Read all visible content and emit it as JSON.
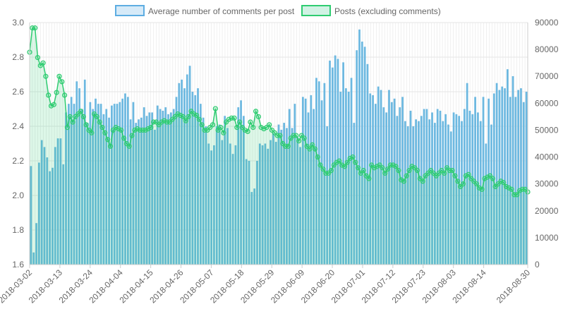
{
  "chart_data": {
    "type": "bar+line",
    "legend": {
      "placement": "top-center",
      "items": [
        {
          "label": "Average number of comments per post",
          "fill": "#d6eaf8",
          "stroke": "#5dade2"
        },
        {
          "label": "Posts (excluding comments)",
          "fill": "#d1f2e4",
          "stroke": "#2ecc71"
        }
      ]
    },
    "x_start": "2018-03-02",
    "x_end": "2018-08-30",
    "x_tick_labels": [
      "2018-03-02",
      "2018-03-13",
      "2018-03-24",
      "2018-04-04",
      "2018-04-15",
      "2018-04-26",
      "2018-05-07",
      "2018-05-18",
      "2018-05-29",
      "2018-06-09",
      "2018-06-20",
      "2018-07-01",
      "2018-07-12",
      "2018-07-23",
      "2018-08-03",
      "2018-08-14",
      "2018-08-30"
    ],
    "y_left": {
      "min": 1.6,
      "max": 3.0,
      "ticks": [
        "1.6",
        "1.8",
        "2.0",
        "2.2",
        "2.4",
        "2.6",
        "2.8",
        "3.0"
      ]
    },
    "y_right": {
      "min": 0,
      "max": 90000,
      "ticks": [
        "0",
        "10000",
        "20000",
        "30000",
        "40000",
        "50000",
        "60000",
        "70000",
        "80000",
        "90000"
      ]
    },
    "grid": true,
    "colors": {
      "bar": "#6cb8e0",
      "line": "#2ecc71",
      "line_fill": "rgba(46,204,113,0.16)",
      "grid": "#e6e6e6",
      "axis_text": "#666666"
    },
    "series": [
      {
        "name": "Average number of comments per post",
        "axis": "left",
        "type": "bar",
        "values": [
          2.17,
          1.67,
          1.84,
          2.19,
          2.32,
          2.28,
          2.22,
          2.14,
          2.16,
          2.28,
          2.33,
          2.33,
          2.18,
          2.48,
          2.53,
          2.57,
          2.53,
          2.66,
          2.62,
          2.5,
          2.67,
          2.42,
          2.54,
          2.5,
          2.56,
          2.53,
          2.53,
          2.47,
          2.5,
          2.45,
          2.52,
          2.53,
          2.53,
          2.54,
          2.56,
          2.59,
          2.57,
          2.44,
          2.54,
          2.42,
          2.44,
          2.45,
          2.51,
          2.46,
          2.48,
          2.48,
          2.38,
          2.52,
          2.5,
          2.49,
          2.51,
          2.47,
          2.48,
          2.5,
          2.57,
          2.65,
          2.67,
          2.62,
          2.7,
          2.75,
          2.6,
          2.58,
          2.62,
          2.53,
          2.45,
          2.4,
          2.3,
          2.26,
          2.29,
          2.4,
          2.41,
          2.32,
          2.46,
          2.39,
          2.3,
          2.24,
          2.29,
          2.51,
          2.55,
          2.46,
          2.21,
          2.2,
          2.02,
          2.04,
          2.2,
          2.3,
          2.29,
          2.3,
          2.27,
          2.32,
          2.36,
          2.31,
          2.41,
          2.38,
          2.42,
          2.39,
          2.5,
          2.39,
          2.53,
          2.34,
          2.28,
          2.57,
          2.56,
          2.48,
          2.58,
          2.5,
          2.68,
          2.66,
          2.55,
          2.65,
          2.4,
          2.78,
          2.74,
          2.81,
          2.79,
          2.6,
          2.77,
          2.62,
          2.6,
          2.68,
          2.42,
          2.84,
          2.96,
          2.89,
          2.86,
          2.76,
          2.59,
          2.58,
          2.53,
          2.63,
          2.61,
          2.51,
          2.48,
          2.61,
          2.54,
          2.56,
          2.46,
          2.51,
          2.57,
          2.43,
          2.4,
          2.49,
          2.4,
          2.44,
          2.43,
          2.46,
          2.5,
          2.5,
          2.44,
          2.48,
          2.42,
          2.5,
          2.49,
          2.43,
          2.47,
          2.41,
          2.37,
          2.48,
          2.47,
          2.46,
          2.43,
          2.5,
          2.65,
          2.49,
          2.47,
          2.57,
          2.48,
          2.43,
          2.57,
          2.3,
          2.56,
          2.41,
          2.59,
          2.65,
          2.61,
          2.63,
          2.62,
          2.73,
          2.57,
          2.69,
          2.57,
          2.61,
          2.62,
          2.54,
          2.6
        ]
      },
      {
        "name": "Posts (excluding comments)",
        "axis": "right",
        "type": "line",
        "values": [
          79000,
          88000,
          88000,
          77000,
          74000,
          75000,
          70000,
          63000,
          59000,
          59500,
          64000,
          70000,
          68000,
          63000,
          51000,
          55000,
          53000,
          55000,
          56000,
          57000,
          55000,
          52000,
          50000,
          49000,
          56000,
          55000,
          53000,
          51000,
          49000,
          46500,
          44000,
          50000,
          51000,
          50500,
          50000,
          47000,
          45000,
          44000,
          48000,
          50000,
          50500,
          50000,
          50000,
          50000,
          50500,
          51000,
          53000,
          53000,
          52000,
          53000,
          53500,
          53000,
          53000,
          54000,
          55000,
          56000,
          55500,
          55000,
          53500,
          55000,
          57000,
          56000,
          55500,
          54000,
          52000,
          50000,
          50000,
          51000,
          52000,
          58000,
          50000,
          51000,
          49000,
          53000,
          54000,
          54500,
          54500,
          51000,
          53000,
          51000,
          50000,
          49500,
          53000,
          51000,
          57000,
          55000,
          51000,
          50500,
          51000,
          52000,
          50000,
          49000,
          48000,
          48000,
          45000,
          44000,
          44000,
          47000,
          48000,
          48000,
          46000,
          48000,
          47000,
          44000,
          43000,
          44500,
          43000,
          40000,
          37000,
          35500,
          34000,
          34000,
          35000,
          37000,
          38000,
          38500,
          37000,
          36500,
          38000,
          39500,
          40000,
          38000,
          36000,
          34000,
          35000,
          33000,
          32000,
          37000,
          36000,
          36500,
          37000,
          36000,
          34000,
          35500,
          37000,
          37000,
          36500,
          35000,
          31500,
          31000,
          33000,
          35000,
          36500,
          36000,
          35000,
          32000,
          31000,
          33000,
          34000,
          35000,
          34000,
          33000,
          34000,
          35000,
          34000,
          36000,
          35000,
          35000,
          33000,
          31000,
          29000,
          30000,
          33000,
          33500,
          32000,
          31000,
          30000,
          28500,
          28000,
          32000,
          32500,
          33000,
          32000,
          29000,
          30000,
          31000,
          30500,
          29000,
          28500,
          28000,
          26000,
          26000,
          27500,
          28000,
          28000,
          27000
        ]
      }
    ]
  }
}
